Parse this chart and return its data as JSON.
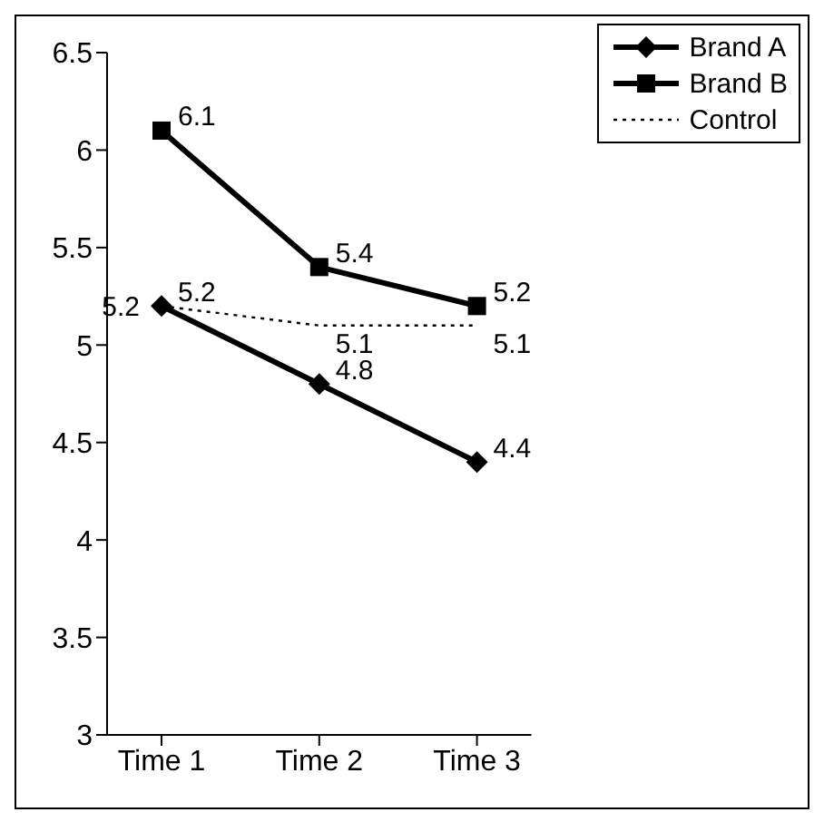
{
  "chart_data": {
    "type": "line",
    "categories": [
      "Time 1",
      "Time 2",
      "Time 3"
    ],
    "series": [
      {
        "name": "Brand A",
        "color": "#000000",
        "values": [
          5.2,
          4.8,
          4.4
        ],
        "marker": "diamond",
        "line_style": "solid"
      },
      {
        "name": "Brand B",
        "color": "#000000",
        "values": [
          6.1,
          5.4,
          5.2
        ],
        "marker": "square",
        "line_style": "solid"
      },
      {
        "name": "Control",
        "color": "#000000",
        "values": [
          5.2,
          5.1,
          5.1
        ],
        "marker": "none",
        "line_style": "dotted"
      }
    ],
    "ylim": [
      3,
      6.5
    ],
    "yticks": [
      3,
      3.5,
      4,
      4.5,
      5,
      5.5,
      6,
      6.5
    ],
    "grid": false,
    "legend": "top right",
    "data_labels": true
  }
}
